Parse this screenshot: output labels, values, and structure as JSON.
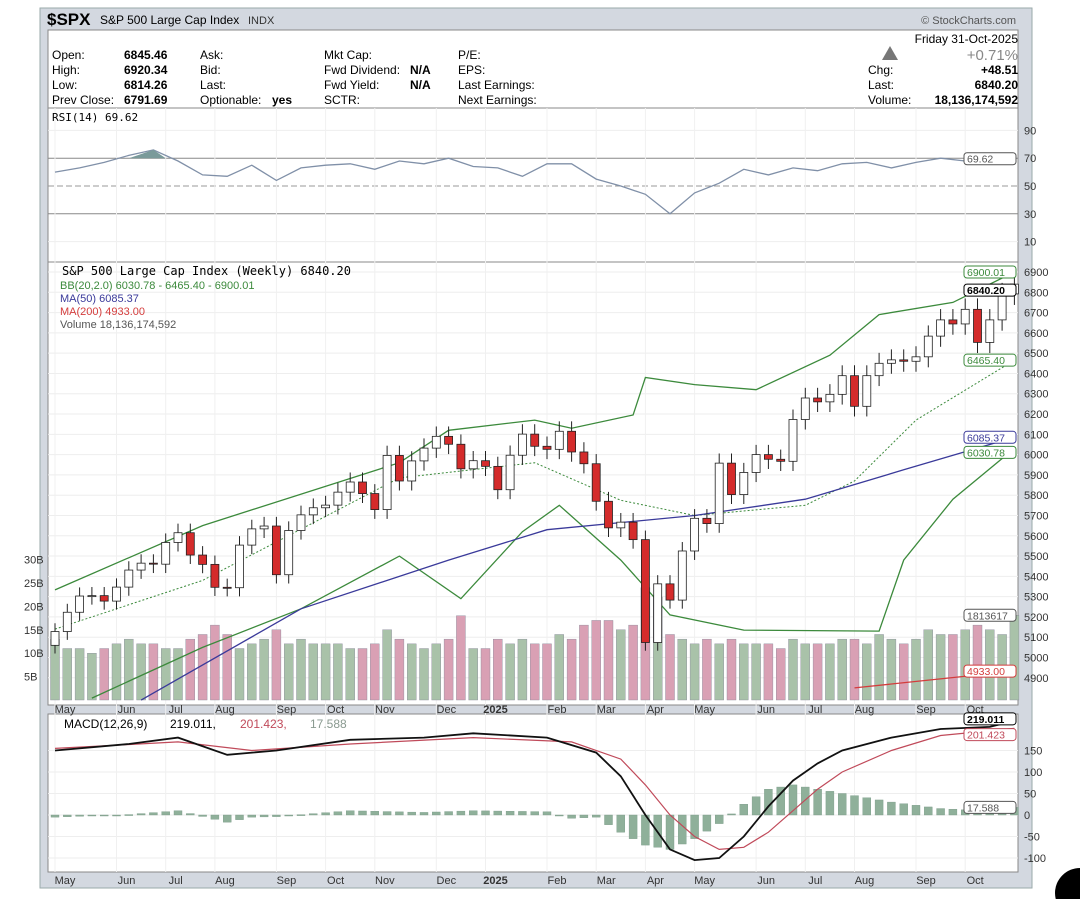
{
  "header": {
    "symbol": "$SPX",
    "name": "S&P 500 Large Cap Index",
    "exchange": "INDX",
    "copyright": "© StockCharts.com"
  },
  "quote": {
    "labels": {
      "open": "Open:",
      "high": "High:",
      "low": "Low:",
      "prev_close": "Prev Close:",
      "ask": "Ask:",
      "bid": "Bid:",
      "last": "Last:",
      "optionable": "Optionable:",
      "mkt_cap": "Mkt Cap:",
      "fwd_dividend": "Fwd Dividend:",
      "fwd_yield": "Fwd Yield:",
      "sctr": "SCTR:",
      "pe": "P/E:",
      "eps": "EPS:",
      "last_earnings": "Last Earnings:",
      "next_earnings": "Next Earnings:",
      "chg": "Chg:",
      "last_r": "Last:",
      "volume": "Volume:"
    },
    "open": "6845.46",
    "high": "6920.34",
    "low": "6814.26",
    "prev_close": "6791.69",
    "optionable": "yes",
    "fwd_dividend": "N/A",
    "fwd_yield": "N/A",
    "date": "Friday  31-Oct-2025",
    "pct_change": "+0.71%",
    "chg": "+48.51",
    "last": "6840.20",
    "volume": "18,136,174,592"
  },
  "rsi_panel": {
    "label": "RSI(14) 69.62",
    "current": "69.62",
    "ticks": [
      90,
      70,
      50,
      30,
      10
    ]
  },
  "price_panel": {
    "title": "S&P 500 Large Cap Index (Weekly) 6840.20",
    "bb_legend": "BB(20,2.0) 6030.78 - 6465.40 - 6900.01",
    "ma50_legend": "MA(50) 6085.37",
    "ma200_legend": "MA(200) 4933.00",
    "volume_legend": "Volume 18,136,174,592",
    "tags": {
      "bb_upper": "6900.01",
      "last": "6840.20",
      "bb_mid": "6465.40",
      "ma50": "6085.37",
      "bb_lower": "6030.78",
      "volume": "1813617",
      "ma200": "4933.00"
    },
    "volume_ticks": [
      "30B",
      "25B",
      "20B",
      "15B",
      "10B",
      "5B"
    ]
  },
  "macd_panel": {
    "label_name": "MACD(12,26,9)",
    "macd": "219.011,",
    "signal": "201.423,",
    "hist": "17.588",
    "ticks": [
      150,
      100,
      50,
      0,
      -50,
      -100
    ]
  },
  "colors": {
    "up": "#ffffff",
    "down": "#d42b2b",
    "bb": "#3c8a3c",
    "ma50": "#3a3a9a",
    "ma200": "#d43c3c",
    "vol_up": "#a9c2a9",
    "vol_down": "#d9a0b4",
    "macd": "#111111",
    "signal": "#c04a5a",
    "hist": "#8fb09a"
  },
  "chart_data": {
    "type": "candlestick",
    "title": "$SPX S&P 500 Large Cap Index (Weekly)",
    "ylim": [
      4850,
      6950
    ],
    "x_month_labels": [
      [
        "May",
        0
      ],
      [
        "Jun",
        5
      ],
      [
        "Jul",
        9
      ],
      [
        "Aug",
        13
      ],
      [
        "Sep",
        18
      ],
      [
        "Oct",
        22
      ],
      [
        "Nov",
        26
      ],
      [
        "Dec",
        31
      ],
      [
        "2025",
        35
      ],
      [
        "Feb",
        40
      ],
      [
        "Mar",
        44
      ],
      [
        "Apr",
        48
      ],
      [
        "May",
        52
      ],
      [
        "Jun",
        57
      ],
      [
        "Jul",
        61
      ],
      [
        "Aug",
        65
      ],
      [
        "Sep",
        70
      ],
      [
        "Oct",
        74
      ]
    ],
    "closes": [
      5128,
      5223,
      5303,
      5305,
      5278,
      5347,
      5431,
      5465,
      5460,
      5567,
      5615,
      5505,
      5459,
      5346,
      5344,
      5554,
      5634,
      5648,
      5408,
      5626,
      5703,
      5738,
      5751,
      5815,
      5865,
      5808,
      5729,
      5996,
      5870,
      5969,
      6032,
      6090,
      6051,
      5930,
      5970,
      5942,
      5827,
      5997,
      6101,
      6041,
      6026,
      6115,
      6013,
      5955,
      5770,
      5639,
      5667,
      5581,
      5074,
      5363,
      5283,
      5525,
      5686,
      5660,
      5958,
      5803,
      5912,
      6000,
      5977,
      5967,
      6173,
      6279,
      6260,
      6297,
      6389,
      6238,
      6389,
      6450,
      6467,
      6460,
      6482,
      6584,
      6664,
      6644,
      6716,
      6553,
      6664,
      6792,
      6840.2
    ],
    "first_open": 5060,
    "volume_billions": [
      13,
      11,
      11,
      10,
      11,
      12,
      13,
      12,
      12,
      11,
      11,
      13,
      14,
      16,
      14,
      11,
      12,
      13,
      15,
      12,
      13,
      12,
      12,
      12,
      11,
      11,
      12,
      15,
      13,
      12,
      11,
      12,
      13,
      18,
      11,
      11,
      13,
      12,
      13,
      12,
      12,
      14,
      13,
      16,
      17,
      17,
      15,
      16,
      24,
      22,
      14,
      13,
      12,
      13,
      12,
      13,
      12,
      12,
      12,
      11,
      13,
      12,
      12,
      12,
      13,
      13,
      12,
      14,
      13,
      12,
      13,
      15,
      14,
      14,
      15,
      16,
      15,
      14,
      18.1
    ],
    "bb_upper": [
      [
        0,
        5333
      ],
      [
        12,
        5650
      ],
      [
        28,
        5960
      ],
      [
        32,
        6120
      ],
      [
        39,
        6170
      ],
      [
        42,
        6130
      ],
      [
        47,
        6195
      ],
      [
        48,
        6380
      ],
      [
        52,
        6345
      ],
      [
        57,
        6320
      ],
      [
        63,
        6490
      ],
      [
        67,
        6690
      ],
      [
        73,
        6750
      ],
      [
        78,
        6900.01
      ]
    ],
    "bb_mid": [
      [
        0,
        5140
      ],
      [
        12,
        5380
      ],
      [
        28,
        5885
      ],
      [
        39,
        5960
      ],
      [
        46,
        5775
      ],
      [
        52,
        5700
      ],
      [
        61,
        5750
      ],
      [
        65,
        5870
      ],
      [
        70,
        6170
      ],
      [
        78,
        6465.4
      ]
    ],
    "bb_lower": [
      [
        3,
        4800
      ],
      [
        12,
        5050
      ],
      [
        20,
        5240
      ],
      [
        28,
        5500
      ],
      [
        33,
        5290
      ],
      [
        38,
        5620
      ],
      [
        41,
        5750
      ],
      [
        46,
        5480
      ],
      [
        50,
        5210
      ],
      [
        56,
        5135
      ],
      [
        67,
        5130
      ],
      [
        69,
        5480
      ],
      [
        73,
        5780
      ],
      [
        78,
        6030.78
      ]
    ],
    "ma50": [
      [
        7,
        4790
      ],
      [
        20,
        5240
      ],
      [
        32,
        5480
      ],
      [
        40,
        5630
      ],
      [
        52,
        5700
      ],
      [
        61,
        5780
      ],
      [
        69,
        5925
      ],
      [
        78,
        6085.37
      ]
    ],
    "ma200": [
      [
        65,
        4850
      ],
      [
        78,
        4933.0
      ]
    ],
    "rsi": [
      [
        0,
        60
      ],
      [
        2,
        63
      ],
      [
        4,
        67
      ],
      [
        6,
        72
      ],
      [
        8,
        76
      ],
      [
        10,
        68
      ],
      [
        12,
        58
      ],
      [
        14,
        57
      ],
      [
        16,
        65
      ],
      [
        18,
        54
      ],
      [
        20,
        63
      ],
      [
        22,
        65
      ],
      [
        24,
        66
      ],
      [
        26,
        62
      ],
      [
        28,
        68
      ],
      [
        30,
        66
      ],
      [
        32,
        70
      ],
      [
        34,
        64
      ],
      [
        36,
        63
      ],
      [
        38,
        57
      ],
      [
        40,
        66
      ],
      [
        42,
        66
      ],
      [
        44,
        55
      ],
      [
        46,
        50
      ],
      [
        48,
        44
      ],
      [
        50,
        30
      ],
      [
        52,
        45
      ],
      [
        54,
        52
      ],
      [
        56,
        62
      ],
      [
        58,
        58
      ],
      [
        60,
        63
      ],
      [
        62,
        61
      ],
      [
        64,
        66
      ],
      [
        66,
        67
      ],
      [
        68,
        63
      ],
      [
        70,
        67
      ],
      [
        72,
        70
      ],
      [
        74,
        68
      ],
      [
        76,
        67
      ],
      [
        78,
        69.62
      ]
    ],
    "macd": [
      [
        0,
        150
      ],
      [
        6,
        165
      ],
      [
        10,
        180
      ],
      [
        14,
        140
      ],
      [
        18,
        150
      ],
      [
        24,
        175
      ],
      [
        30,
        180
      ],
      [
        34,
        190
      ],
      [
        40,
        180
      ],
      [
        44,
        145
      ],
      [
        46,
        90
      ],
      [
        48,
        0
      ],
      [
        50,
        -80
      ],
      [
        52,
        -105
      ],
      [
        54,
        -100
      ],
      [
        56,
        -50
      ],
      [
        58,
        20
      ],
      [
        60,
        80
      ],
      [
        62,
        120
      ],
      [
        64,
        150
      ],
      [
        68,
        180
      ],
      [
        72,
        200
      ],
      [
        76,
        205
      ],
      [
        78,
        219.011
      ]
    ],
    "signal": [
      [
        0,
        155
      ],
      [
        10,
        170
      ],
      [
        16,
        150
      ],
      [
        24,
        165
      ],
      [
        34,
        180
      ],
      [
        42,
        170
      ],
      [
        46,
        130
      ],
      [
        48,
        70
      ],
      [
        50,
        0
      ],
      [
        52,
        -50
      ],
      [
        54,
        -80
      ],
      [
        56,
        -75
      ],
      [
        58,
        -40
      ],
      [
        60,
        10
      ],
      [
        62,
        60
      ],
      [
        64,
        100
      ],
      [
        68,
        150
      ],
      [
        72,
        185
      ],
      [
        78,
        201.423
      ]
    ]
  }
}
